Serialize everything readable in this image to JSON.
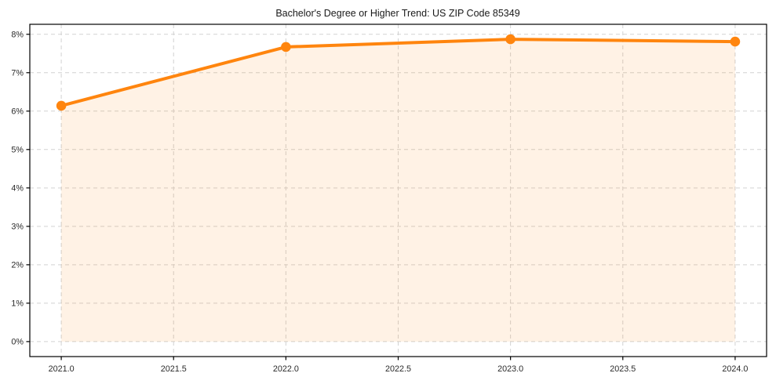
{
  "chart_data": {
    "type": "line",
    "title": "Bachelor's Degree or Higher Trend: US ZIP Code 85349",
    "series": [
      {
        "name": "Bachelor's Degree or Higher",
        "x": [
          2021,
          2022,
          2023,
          2024
        ],
        "y": [
          6.14,
          7.67,
          7.87,
          7.81
        ]
      }
    ],
    "unit": "%",
    "xlabel": "",
    "ylabel": "",
    "xticks": [
      2021.0,
      2021.5,
      2022.0,
      2022.5,
      2023.0,
      2023.5,
      2024.0
    ],
    "xtick_labels": [
      "2021.0",
      "2021.5",
      "2022.0",
      "2022.5",
      "2023.0",
      "2023.5",
      "2024.0"
    ],
    "yticks": [
      0,
      1,
      2,
      3,
      4,
      5,
      6,
      7,
      8
    ],
    "ytick_labels": [
      "0%",
      "1%",
      "2%",
      "3%",
      "4%",
      "5%",
      "6%",
      "7%",
      "8%"
    ],
    "xlim": [
      2020.86,
      2024.14
    ],
    "ylim": [
      -0.39,
      8.26
    ],
    "grid": true,
    "grid_style": "dashed",
    "legend": false,
    "area_fill": true,
    "fill_baseline": 0,
    "marker": "circle",
    "colors": {
      "line": "#ff850e",
      "marker": "#ff850e",
      "fill": "#ff850e",
      "fill_opacity": 0.11,
      "grid": "#d2d2d2",
      "spine": "#000000",
      "background": "#ffffff",
      "text": "#1a1a1a"
    }
  }
}
